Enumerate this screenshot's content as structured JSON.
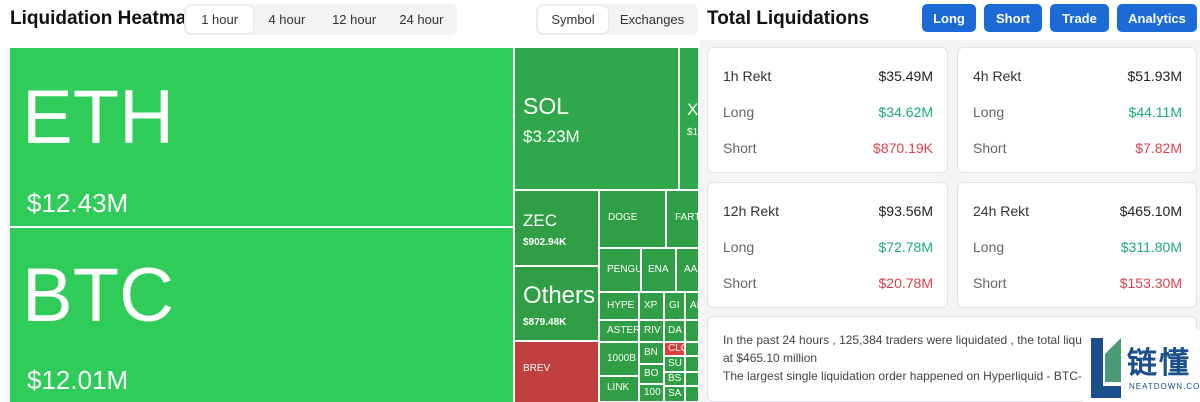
{
  "heatmap": {
    "title": "Liquidation Heatmap",
    "timeframes": [
      "1 hour",
      "4 hour",
      "12 hour",
      "24 hour"
    ],
    "active_timeframe": "1 hour",
    "group_by": [
      "Symbol",
      "Exchanges"
    ],
    "active_group": "Symbol",
    "tiles": {
      "eth": {
        "symbol": "ETH",
        "value": "$12.43M"
      },
      "btc": {
        "symbol": "BTC",
        "value": "$12.01M"
      },
      "sol": {
        "symbol": "SOL",
        "value": "$3.23M"
      },
      "xrp": {
        "symbol": "X",
        "value": "$1"
      },
      "zec": {
        "symbol": "ZEC",
        "value": "$902.94K"
      },
      "others": {
        "symbol": "Others",
        "value": "$879.48K"
      },
      "brev": {
        "symbol": "BREV"
      },
      "doge": {
        "symbol": "DOGE"
      },
      "fart": {
        "symbol": "FART"
      },
      "pengu": {
        "symbol": "PENGU"
      },
      "ena": {
        "symbol": "ENA"
      },
      "aa": {
        "symbol": "AA"
      },
      "hype": {
        "symbol": "HYPE"
      },
      "xp": {
        "symbol": "XP"
      },
      "gi": {
        "symbol": "GI"
      },
      "ai": {
        "symbol": "AI"
      },
      "aster": {
        "symbol": "ASTER"
      },
      "riv": {
        "symbol": "RIV"
      },
      "da": {
        "symbol": "DA"
      },
      "clo": {
        "symbol": "CLO"
      },
      "thousand_b": {
        "symbol": "1000B"
      },
      "bn": {
        "symbol": "BN"
      },
      "su": {
        "symbol": "SU"
      },
      "bo": {
        "symbol": "BO"
      },
      "bs": {
        "symbol": "BS"
      },
      "link": {
        "symbol": "LINK"
      },
      "ten": {
        "symbol": "100"
      },
      "sa": {
        "symbol": "SA"
      }
    }
  },
  "total": {
    "title": "Total Liquidations",
    "buttons": {
      "long": "Long",
      "short": "Short",
      "trade": "Trade",
      "analytics": "Analytics"
    },
    "labels": {
      "long": "Long",
      "short": "Short"
    },
    "cards": {
      "h1": {
        "title": "1h Rekt",
        "total": "$35.49M",
        "long": "$34.62M",
        "short": "$870.19K"
      },
      "h4": {
        "title": "4h Rekt",
        "total": "$51.93M",
        "long": "$44.11M",
        "short": "$7.82M"
      },
      "h12": {
        "title": "12h Rekt",
        "total": "$93.56M",
        "long": "$72.78M",
        "short": "$20.78M"
      },
      "h24": {
        "title": "24h Rekt",
        "total": "$465.10M",
        "long": "$311.80M",
        "short": "$153.30M"
      }
    },
    "summary": {
      "line1": "In the past 24 hours , 125,384 traders were liquidated , the total liqu",
      "line2": "at $465.10 million",
      "line3": "The largest single liquidation order happened on Hyperliquid - BTC-"
    }
  },
  "watermark": {
    "cn": "链懂",
    "en": "NEATDOWN.COM"
  },
  "colors": {
    "accent": "#1b6ad6",
    "long_green": "#1aaa7a",
    "short_red": "#e0414f",
    "tile_green": "#30cc5a",
    "tile_red": "#c0403f"
  }
}
